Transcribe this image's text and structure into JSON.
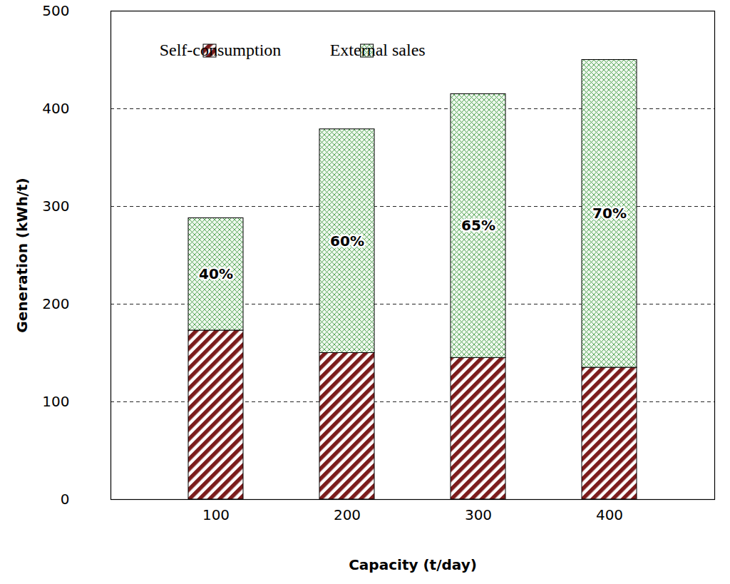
{
  "chart_data": {
    "type": "bar",
    "x_label": "Capacity (t/day)",
    "y_label": "Generation (kWh/t)",
    "categories": [
      "100",
      "200",
      "300",
      "400"
    ],
    "series": [
      {
        "name": "Self-consumption",
        "color": "#7b1c1c",
        "values": [
          173,
          150,
          145,
          135
        ]
      },
      {
        "name": "External sales",
        "color": "#5aa85a",
        "values": [
          115,
          229,
          270,
          315
        ],
        "annotations": [
          "40%",
          "60%",
          "65%",
          "70%"
        ]
      }
    ],
    "stacked": true,
    "ylim": [
      0,
      500
    ],
    "yticks": [
      0,
      100,
      200,
      300,
      400,
      500
    ],
    "grid": true,
    "legend": "top"
  }
}
